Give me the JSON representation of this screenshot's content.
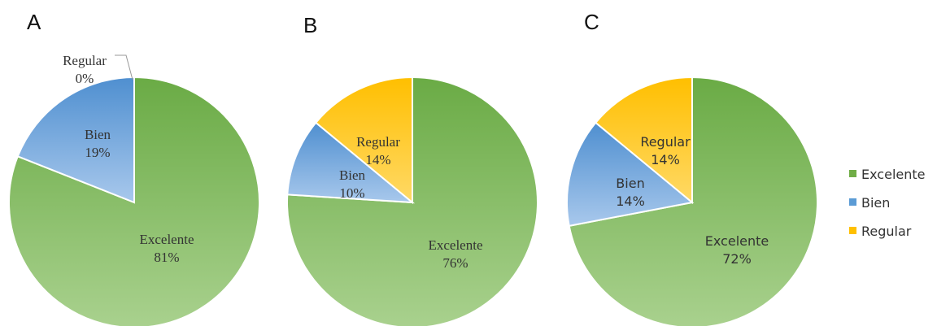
{
  "legend": {
    "entries": [
      {
        "name": "Excelente",
        "color": "#70ad47"
      },
      {
        "name": "Bien",
        "color": "#5b9bd5"
      },
      {
        "name": "Regular",
        "color": "#ffc000"
      }
    ],
    "position": "right"
  },
  "chart_data": [
    {
      "type": "pie",
      "panel": "A",
      "categories": [
        "Excelente",
        "Bien",
        "Regular"
      ],
      "values": [
        81,
        19,
        0
      ],
      "labels": [
        "81%",
        "19%",
        "0%"
      ]
    },
    {
      "type": "pie",
      "panel": "B",
      "categories": [
        "Excelente",
        "Bien",
        "Regular"
      ],
      "values": [
        76,
        10,
        14
      ],
      "labels": [
        "76%",
        "10%",
        "14%"
      ]
    },
    {
      "type": "pie",
      "panel": "C",
      "categories": [
        "Excelente",
        "Bien",
        "Regular"
      ],
      "values": [
        72,
        14,
        14
      ],
      "labels": [
        "72%",
        "14%",
        "14%"
      ]
    }
  ]
}
